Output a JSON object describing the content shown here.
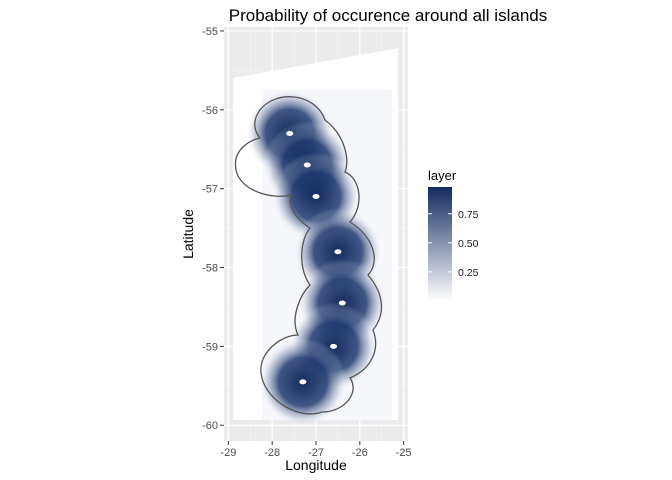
{
  "chart_data": {
    "type": "heatmap",
    "title": "Probability of occurence around all islands",
    "xlabel": "Longitude",
    "ylabel": "Latitude",
    "xlim": [
      -29.1,
      -24.9
    ],
    "ylim": [
      -60.2,
      -54.95
    ],
    "x_ticks": [
      "-29",
      "-28",
      "-27",
      "-26",
      "-25"
    ],
    "y_ticks": [
      "-55",
      "-56",
      "-57",
      "-58",
      "-59",
      "-60"
    ],
    "grid": true,
    "legend": {
      "title": "layer",
      "placement": "right",
      "ticks": [
        "0.25",
        "0.50",
        "0.75"
      ],
      "low_color": "#ffffff",
      "high_color": "#132b5e"
    },
    "islands": [
      {
        "lon": -27.6,
        "lat": -56.3
      },
      {
        "lon": -27.2,
        "lat": -56.7
      },
      {
        "lon": -27.0,
        "lat": -57.1
      },
      {
        "lon": -26.5,
        "lat": -57.8
      },
      {
        "lon": -26.4,
        "lat": -58.45
      },
      {
        "lon": -26.6,
        "lat": -59.0
      },
      {
        "lon": -27.3,
        "lat": -59.45
      }
    ]
  }
}
